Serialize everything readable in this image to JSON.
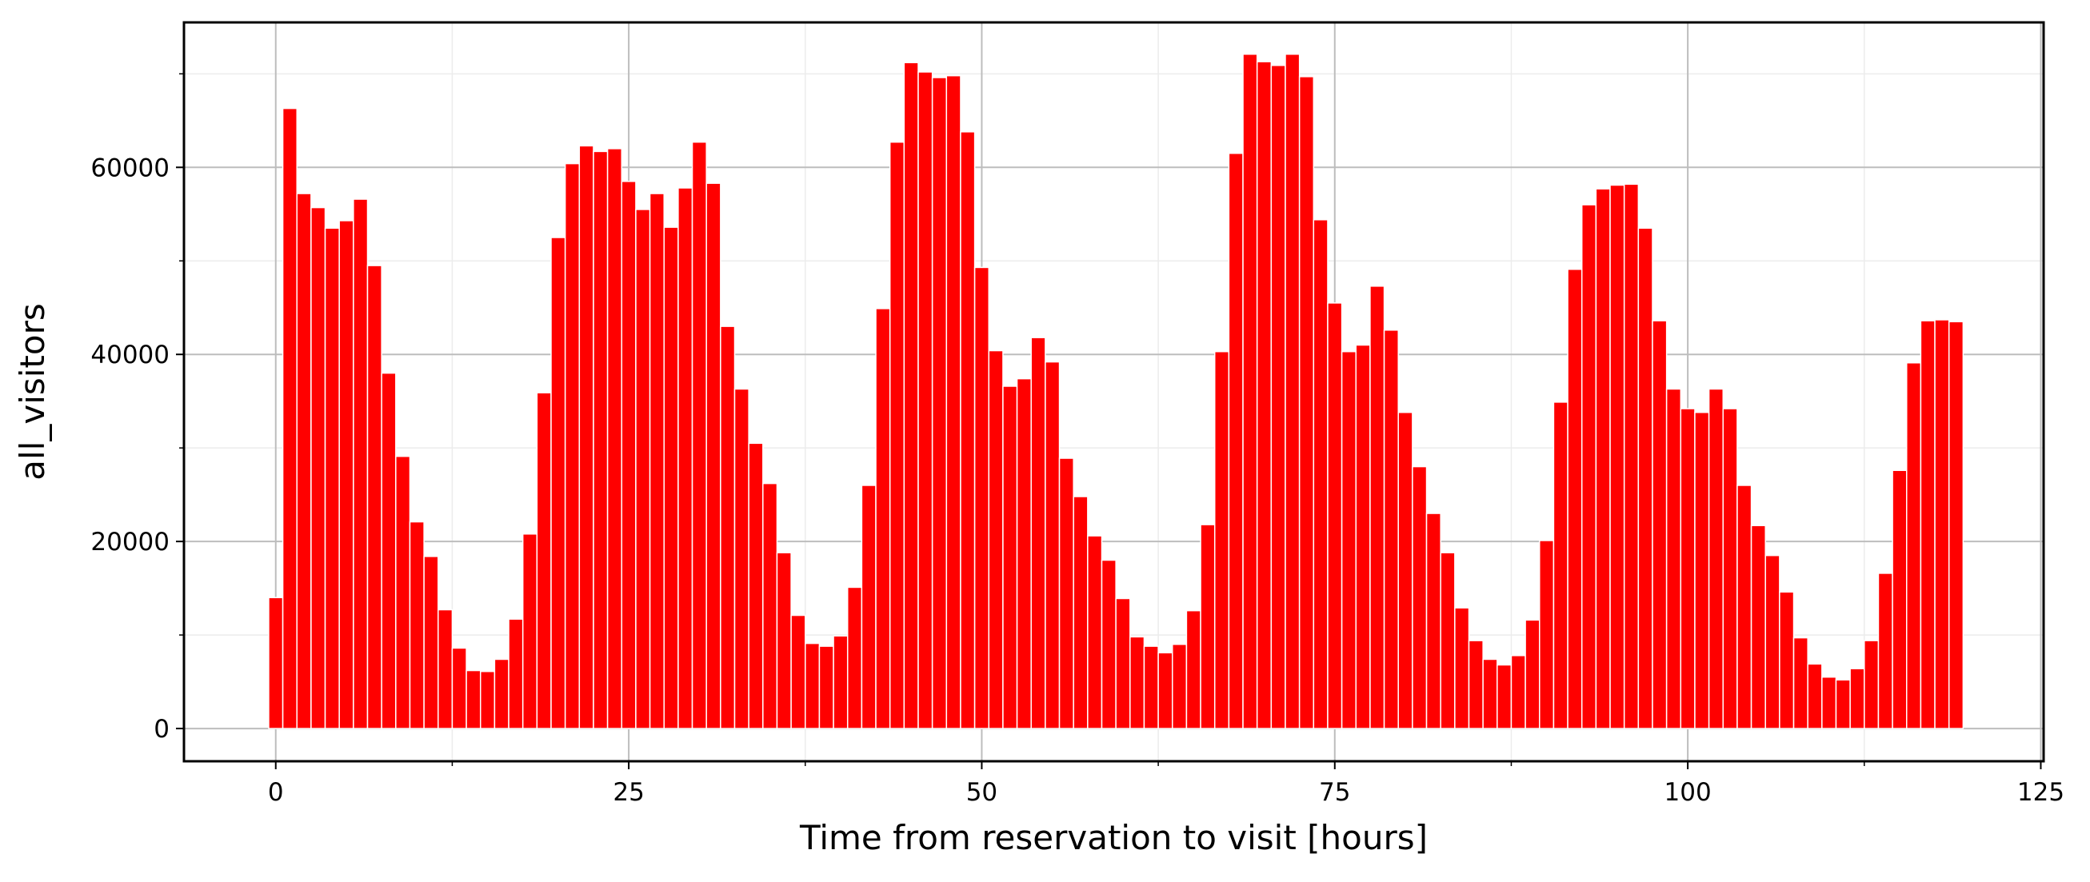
{
  "chart_data": {
    "type": "bar",
    "title": "",
    "xlabel": "Time from reservation to visit [hours]",
    "ylabel": "all_visitors",
    "xlim": [
      -6.5,
      125.2
    ],
    "ylim": [
      -3500,
      75500
    ],
    "xticks": [
      0,
      25,
      50,
      75,
      100,
      125
    ],
    "yticks": [
      0,
      20000,
      40000,
      60000
    ],
    "grid": true,
    "legend": "none",
    "bar_color": "#ff0000",
    "bar_edge_color": "#ffffff",
    "x": [
      0,
      1,
      2,
      3,
      4,
      5,
      6,
      7,
      8,
      9,
      10,
      11,
      12,
      13,
      14,
      15,
      16,
      17,
      18,
      19,
      20,
      21,
      22,
      23,
      24,
      25,
      26,
      27,
      28,
      29,
      30,
      31,
      32,
      33,
      34,
      35,
      36,
      37,
      38,
      39,
      40,
      41,
      42,
      43,
      44,
      45,
      46,
      47,
      48,
      49,
      50,
      51,
      52,
      53,
      54,
      55,
      56,
      57,
      58,
      59,
      60,
      61,
      62,
      63,
      64,
      65,
      66,
      67,
      68,
      69,
      70,
      71,
      72,
      73,
      74,
      75,
      76,
      77,
      78,
      79,
      80,
      81,
      82,
      83,
      84,
      85,
      86,
      87,
      88,
      89,
      90,
      91,
      92,
      93,
      94,
      95,
      96,
      97,
      98,
      99,
      100,
      101,
      102,
      103,
      104,
      105,
      106,
      107,
      108,
      109,
      110,
      111,
      112,
      113,
      114,
      115,
      116,
      117,
      118,
      119
    ],
    "values": [
      14000,
      66300,
      57200,
      55700,
      53500,
      54300,
      56600,
      49500,
      38000,
      29100,
      22100,
      18400,
      12700,
      8600,
      6200,
      6100,
      7400,
      11700,
      20800,
      35900,
      52500,
      60400,
      62300,
      61700,
      62000,
      58500,
      55500,
      57200,
      53600,
      57800,
      62700,
      58300,
      43000,
      36300,
      30500,
      26200,
      18800,
      12100,
      9100,
      8800,
      9900,
      15100,
      26000,
      44900,
      62700,
      71200,
      70200,
      69600,
      69800,
      63800,
      49300,
      40400,
      36600,
      37400,
      41800,
      39200,
      28900,
      24800,
      20600,
      18000,
      13900,
      9800,
      8800,
      8100,
      9000,
      12600,
      21800,
      40300,
      61500,
      72100,
      71300,
      70900,
      72100,
      69700,
      54400,
      45500,
      40300,
      41000,
      47300,
      42600,
      33800,
      28000,
      23000,
      18800,
      12900,
      9400,
      7400,
      6800,
      7800,
      11600,
      20100,
      34900,
      49100,
      56000,
      57700,
      58100,
      58200,
      53500,
      43600,
      36300,
      34200,
      33800,
      36300,
      34200,
      26000,
      21700,
      18500,
      14600,
      9700,
      6900,
      5500,
      5200,
      6400,
      9400,
      16600,
      27600,
      39100,
      43600,
      43700,
      43500
    ]
  }
}
